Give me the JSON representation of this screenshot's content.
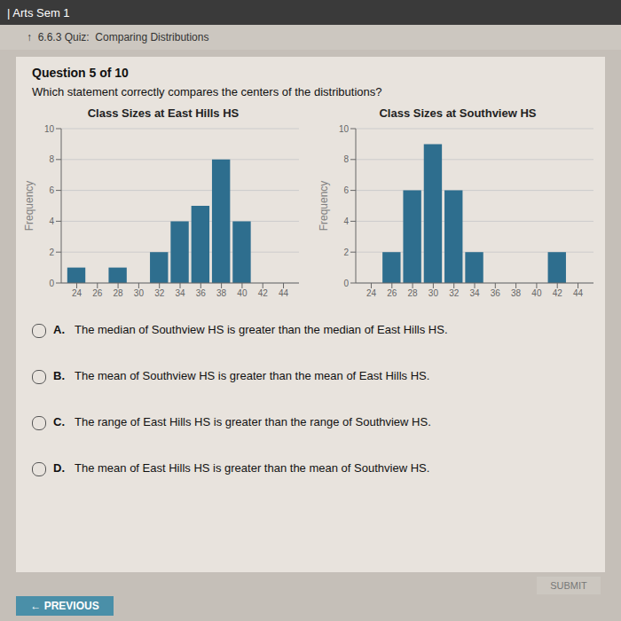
{
  "chart_data": [
    {
      "type": "bar",
      "title": "Class Sizes at East Hills HS",
      "ylabel": "Frequency",
      "x": [
        24,
        26,
        28,
        30,
        32,
        34,
        36,
        38,
        40,
        42,
        44
      ],
      "values": [
        1,
        0,
        1,
        0,
        2,
        4,
        5,
        8,
        4,
        0,
        0
      ],
      "color": "#2e6e8e",
      "xlim": [
        22.5,
        45.5
      ],
      "xticks": [
        24,
        26,
        28,
        30,
        32,
        34,
        36,
        38,
        40,
        42,
        44
      ],
      "ylim": [
        0,
        10
      ],
      "yticks": [
        0,
        2,
        4,
        6,
        8,
        10
      ],
      "grid": true
    },
    {
      "type": "bar",
      "title": "Class Sizes at Southview HS",
      "ylabel": "Frequency",
      "x": [
        24,
        26,
        28,
        30,
        32,
        34,
        36,
        38,
        40,
        42,
        44
      ],
      "values": [
        0,
        2,
        6,
        9,
        6,
        2,
        0,
        0,
        0,
        2,
        0
      ],
      "color": "#2e6e8e",
      "xlim": [
        22.5,
        45.5
      ],
      "xticks": [
        24,
        26,
        28,
        30,
        32,
        34,
        36,
        38,
        40,
        42,
        44
      ],
      "ylim": [
        0,
        10
      ],
      "yticks": [
        0,
        2,
        4,
        6,
        8,
        10
      ],
      "grid": true
    }
  ],
  "annotations": [
    "| Arts Sem 1",
    "↑  6.6.3 Quiz:  Comparing Distributions",
    "Question 5 of 10",
    "Which statement correctly compares the centers of the distributions?",
    "A.",
    "The median of Southview HS is greater than the median of East Hills HS.",
    "B.",
    "The mean of Southview HS is greater than the mean of East Hills HS.",
    "C.",
    "The range of East Hills HS is greater than the range of Southview HS.",
    "D.",
    "The mean of East Hills HS is greater than the mean of Southview HS.",
    "SUBMIT",
    "← PREVIOUS"
  ]
}
